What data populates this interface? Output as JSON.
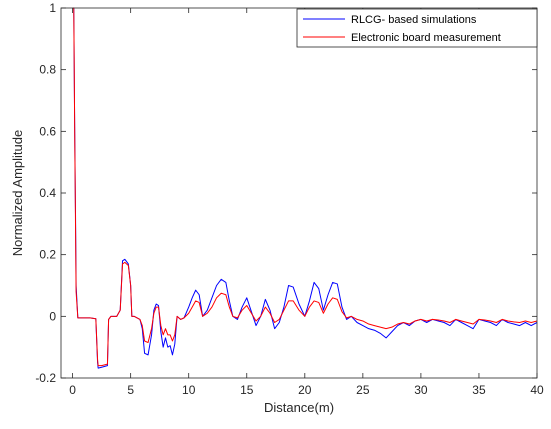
{
  "chart_data": {
    "type": "line",
    "title": "",
    "xlabel": "Distance(m)",
    "ylabel": "Normalized Amplitude",
    "xlim": [
      -1,
      40
    ],
    "ylim": [
      -0.2,
      1
    ],
    "xticks": [
      0,
      5,
      10,
      15,
      20,
      25,
      30,
      35,
      40
    ],
    "yticks": [
      -0.2,
      0,
      0.2,
      0.4,
      0.6,
      0.8,
      1
    ],
    "xtick_labels": [
      "0",
      "5",
      "10",
      "15",
      "20",
      "25",
      "30",
      "35",
      "40"
    ],
    "ytick_labels": [
      "-0.2",
      "0",
      "0.2",
      "0.4",
      "0.6",
      "0.8",
      "1"
    ],
    "grid": false,
    "legend_position": "top-right",
    "series": [
      {
        "name": "RLCG- based simulations",
        "color": "#0000ff",
        "x": [
          0,
          0.1,
          0.18,
          0.25,
          0.3,
          0.45,
          1.0,
          1.5,
          2.0,
          2.15,
          2.2,
          2.5,
          3.0,
          3.1,
          3.3,
          3.8,
          4.1,
          4.3,
          4.5,
          4.8,
          5.0,
          5.1,
          5.3,
          5.8,
          6.0,
          6.2,
          6.5,
          6.8,
          7.0,
          7.2,
          7.4,
          7.6,
          7.8,
          8.0,
          8.2,
          8.4,
          8.6,
          8.8,
          9.0,
          9.3,
          9.6,
          10.0,
          10.3,
          10.6,
          10.9,
          11.2,
          11.6,
          12.0,
          12.4,
          12.8,
          13.2,
          13.5,
          13.8,
          14.2,
          14.6,
          15.0,
          15.4,
          15.8,
          16.2,
          16.6,
          17.0,
          17.4,
          17.8,
          18.2,
          18.6,
          19.0,
          19.5,
          20.0,
          20.4,
          20.8,
          21.2,
          21.6,
          22.0,
          22.4,
          22.8,
          23.2,
          23.6,
          24.0,
          24.5,
          25.0,
          25.5,
          26.0,
          26.5,
          27.0,
          27.5,
          28.0,
          28.5,
          29.0,
          29.5,
          30.0,
          30.5,
          31.0,
          31.5,
          32.0,
          32.5,
          33.0,
          33.5,
          34.0,
          34.5,
          35.0,
          35.5,
          36.0,
          36.5,
          37.0,
          37.5,
          38.0,
          38.5,
          39.0,
          39.5,
          40.0
        ],
        "y": [
          1.0,
          1.0,
          0.6,
          0.33,
          0.1,
          -0.005,
          -0.005,
          -0.005,
          -0.008,
          -0.15,
          -0.168,
          -0.165,
          -0.16,
          -0.01,
          0.0,
          0.0,
          0.02,
          0.18,
          0.185,
          0.17,
          0.1,
          0.0,
          0.0,
          -0.01,
          -0.04,
          -0.12,
          -0.125,
          -0.06,
          0.02,
          0.04,
          0.035,
          -0.05,
          -0.1,
          -0.07,
          -0.1,
          -0.095,
          -0.125,
          -0.09,
          0.0,
          -0.01,
          -0.005,
          0.03,
          0.06,
          0.085,
          0.07,
          0.0,
          0.02,
          0.06,
          0.1,
          0.12,
          0.11,
          0.05,
          0.0,
          -0.01,
          0.03,
          0.06,
          0.015,
          -0.03,
          0.0,
          0.055,
          0.02,
          -0.04,
          -0.02,
          0.03,
          0.1,
          0.095,
          0.04,
          0.0,
          0.05,
          0.11,
          0.09,
          0.02,
          0.07,
          0.11,
          0.105,
          0.03,
          -0.01,
          0.0,
          -0.02,
          -0.03,
          -0.04,
          -0.045,
          -0.055,
          -0.07,
          -0.05,
          -0.03,
          -0.02,
          -0.03,
          -0.015,
          -0.01,
          -0.02,
          -0.01,
          -0.015,
          -0.02,
          -0.03,
          -0.01,
          -0.02,
          -0.03,
          -0.04,
          -0.01,
          -0.015,
          -0.02,
          -0.03,
          -0.01,
          -0.02,
          -0.025,
          -0.03,
          -0.02,
          -0.03,
          -0.02
        ]
      },
      {
        "name": "Electronic board measurement",
        "color": "#ff0000",
        "x": [
          0,
          0.1,
          0.18,
          0.25,
          0.3,
          0.45,
          1.0,
          1.5,
          2.0,
          2.15,
          2.2,
          2.5,
          3.0,
          3.1,
          3.3,
          3.8,
          4.1,
          4.3,
          4.5,
          4.8,
          5.0,
          5.1,
          5.3,
          5.8,
          6.0,
          6.2,
          6.5,
          6.8,
          7.0,
          7.2,
          7.4,
          7.6,
          7.8,
          8.0,
          8.2,
          8.4,
          8.6,
          8.8,
          9.0,
          9.3,
          9.6,
          10.0,
          10.3,
          10.6,
          10.9,
          11.2,
          11.6,
          12.0,
          12.4,
          12.8,
          13.2,
          13.5,
          13.8,
          14.2,
          14.6,
          15.0,
          15.4,
          15.8,
          16.2,
          16.6,
          17.0,
          17.4,
          17.8,
          18.2,
          18.6,
          19.0,
          19.5,
          20.0,
          20.4,
          20.8,
          21.2,
          21.6,
          22.0,
          22.4,
          22.8,
          23.2,
          23.6,
          24.0,
          24.5,
          25.0,
          25.5,
          26.0,
          26.5,
          27.0,
          27.5,
          28.0,
          28.5,
          29.0,
          29.5,
          30.0,
          30.5,
          31.0,
          31.5,
          32.0,
          32.5,
          33.0,
          33.5,
          34.0,
          34.5,
          35.0,
          35.5,
          36.0,
          36.5,
          37.0,
          37.5,
          38.0,
          38.5,
          39.0,
          39.5,
          40.0
        ],
        "y": [
          1.0,
          1.0,
          0.6,
          0.3,
          0.08,
          -0.005,
          -0.005,
          -0.005,
          -0.008,
          -0.14,
          -0.16,
          -0.16,
          -0.155,
          -0.01,
          0.0,
          0.0,
          0.02,
          0.17,
          0.175,
          0.165,
          0.1,
          0.0,
          0.0,
          -0.01,
          -0.03,
          -0.08,
          -0.085,
          -0.04,
          0.01,
          0.03,
          0.03,
          -0.03,
          -0.06,
          -0.04,
          -0.06,
          -0.06,
          -0.08,
          -0.06,
          0.0,
          -0.01,
          -0.005,
          0.01,
          0.03,
          0.05,
          0.045,
          0.0,
          0.01,
          0.03,
          0.06,
          0.075,
          0.07,
          0.03,
          0.0,
          -0.005,
          0.02,
          0.035,
          0.01,
          -0.015,
          0.0,
          0.03,
          0.01,
          -0.02,
          -0.01,
          0.02,
          0.05,
          0.05,
          0.02,
          0.0,
          0.03,
          0.05,
          0.045,
          0.01,
          0.04,
          0.06,
          0.055,
          0.015,
          -0.005,
          0.0,
          -0.01,
          -0.015,
          -0.025,
          -0.03,
          -0.035,
          -0.04,
          -0.035,
          -0.025,
          -0.02,
          -0.025,
          -0.015,
          -0.01,
          -0.015,
          -0.01,
          -0.012,
          -0.015,
          -0.02,
          -0.01,
          -0.015,
          -0.02,
          -0.025,
          -0.01,
          -0.012,
          -0.015,
          -0.02,
          -0.01,
          -0.015,
          -0.018,
          -0.02,
          -0.015,
          -0.02,
          -0.015
        ]
      }
    ]
  }
}
